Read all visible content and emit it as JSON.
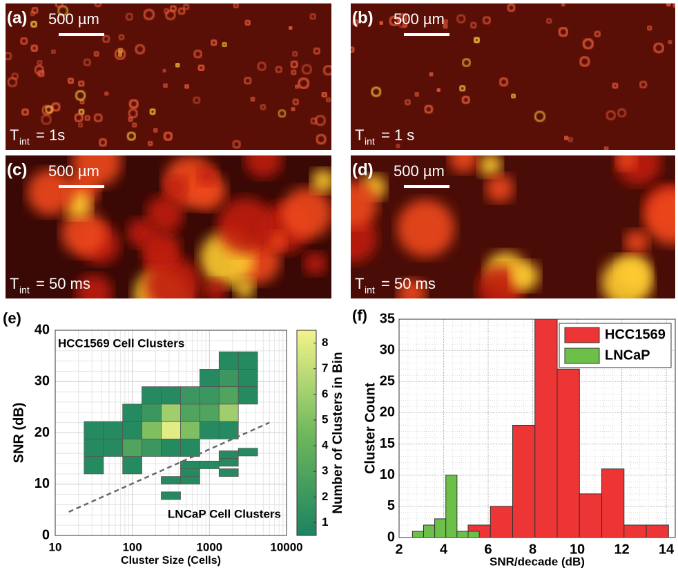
{
  "panels": [
    {
      "label": "(a)",
      "scale_bar": "500 µm",
      "t": "T",
      "sub": "int",
      "t_value": "= 1s"
    },
    {
      "label": "(b)",
      "scale_bar": "500 µm",
      "t": "T",
      "sub": "int",
      "t_value": "= 1 s"
    },
    {
      "label": "(c)",
      "scale_bar": "500 µm",
      "t": "T",
      "sub": "int",
      "t_value": "= 50 ms"
    },
    {
      "label": "(d)",
      "scale_bar": "500 µm",
      "t": "T",
      "sub": "int",
      "t_value": "= 50 ms"
    }
  ],
  "chart_data": [
    {
      "type": "heatmap",
      "panel": "(e)",
      "xlabel": "Cluster Size (Cells)",
      "ylabel": "SNR (dB)",
      "colorbar_label": "Number of Clusters in Bin",
      "xscale": "log",
      "xlim": [
        10,
        10000
      ],
      "xticks": [
        10,
        100,
        1000,
        10000
      ],
      "ylim": [
        0,
        40
      ],
      "yticks": [
        0,
        10,
        20,
        30,
        40
      ],
      "grid": true,
      "clim": [
        0.5,
        8.5
      ],
      "cticks": [
        1,
        2,
        3,
        4,
        5,
        6,
        7,
        8
      ],
      "colormap": [
        "#1b8360",
        "#6fb85c",
        "#f2f38a"
      ],
      "annotations": [
        "HCC1569 Cell Clusters",
        "LNCaP Cell Clusters"
      ],
      "threshold_line": {
        "x": [
          15,
          6000
        ],
        "y": [
          4.6,
          22
        ]
      },
      "cells": [
        {
          "x": [
            1334,
            2371
          ],
          "y": [
            32.4,
            35.8
          ],
          "count": 1
        },
        {
          "x": [
            2371,
            4217
          ],
          "y": [
            32.4,
            35.8
          ],
          "count": 1
        },
        {
          "x": [
            750,
            1334
          ],
          "y": [
            29,
            32.4
          ],
          "count": 1
        },
        {
          "x": [
            1334,
            2371
          ],
          "y": [
            29,
            32.4
          ],
          "count": 2
        },
        {
          "x": [
            2371,
            4217
          ],
          "y": [
            29,
            32.4
          ],
          "count": 1
        },
        {
          "x": [
            133,
            237
          ],
          "y": [
            25.6,
            29
          ],
          "count": 1
        },
        {
          "x": [
            237,
            422
          ],
          "y": [
            25.6,
            29
          ],
          "count": 1
        },
        {
          "x": [
            422,
            750
          ],
          "y": [
            25.6,
            29
          ],
          "count": 2
        },
        {
          "x": [
            750,
            1334
          ],
          "y": [
            25.6,
            29
          ],
          "count": 2
        },
        {
          "x": [
            1334,
            2371
          ],
          "y": [
            25.6,
            29
          ],
          "count": 3
        },
        {
          "x": [
            2371,
            4217
          ],
          "y": [
            25.6,
            29
          ],
          "count": 1
        },
        {
          "x": [
            75,
            133
          ],
          "y": [
            22.2,
            25.6
          ],
          "count": 1
        },
        {
          "x": [
            133,
            237
          ],
          "y": [
            22.2,
            25.6
          ],
          "count": 2
        },
        {
          "x": [
            237,
            422
          ],
          "y": [
            22.2,
            25.6
          ],
          "count": 6
        },
        {
          "x": [
            422,
            750
          ],
          "y": [
            22.2,
            25.6
          ],
          "count": 3
        },
        {
          "x": [
            750,
            1334
          ],
          "y": [
            22.2,
            25.6
          ],
          "count": 3
        },
        {
          "x": [
            1334,
            2371
          ],
          "y": [
            22.2,
            25.6
          ],
          "count": 6
        },
        {
          "x": [
            23.7,
            42.2
          ],
          "y": [
            18.8,
            22.2
          ],
          "count": 1
        },
        {
          "x": [
            42.2,
            75
          ],
          "y": [
            18.8,
            22.2
          ],
          "count": 1
        },
        {
          "x": [
            75,
            133
          ],
          "y": [
            18.8,
            22.2
          ],
          "count": 1
        },
        {
          "x": [
            133,
            237
          ],
          "y": [
            18.8,
            22.2
          ],
          "count": 5
        },
        {
          "x": [
            237,
            422
          ],
          "y": [
            18.8,
            22.2
          ],
          "count": 8
        },
        {
          "x": [
            422,
            750
          ],
          "y": [
            18.8,
            22.2
          ],
          "count": 5
        },
        {
          "x": [
            750,
            1334
          ],
          "y": [
            18.8,
            22.2
          ],
          "count": 1
        },
        {
          "x": [
            1334,
            2371
          ],
          "y": [
            18.8,
            22.2
          ],
          "count": 1
        },
        {
          "x": [
            23.7,
            42.2
          ],
          "y": [
            15.4,
            18.8
          ],
          "count": 1
        },
        {
          "x": [
            42.2,
            75
          ],
          "y": [
            15.4,
            18.8
          ],
          "count": 1
        },
        {
          "x": [
            75,
            133
          ],
          "y": [
            15.4,
            18.8
          ],
          "count": 3
        },
        {
          "x": [
            133,
            237
          ],
          "y": [
            15.4,
            18.8
          ],
          "count": 2
        },
        {
          "x": [
            237,
            422
          ],
          "y": [
            15.4,
            18.8
          ],
          "count": 1
        },
        {
          "x": [
            422,
            750
          ],
          "y": [
            15.4,
            18.8
          ],
          "count": 1
        },
        {
          "x": [
            23.7,
            42.2
          ],
          "y": [
            12,
            15.4
          ],
          "count": 1
        },
        {
          "x": [
            75,
            133
          ],
          "y": [
            12,
            15.4
          ],
          "count": 1
        },
        {
          "x": [
            237,
            422
          ],
          "y": [
            7,
            8.5
          ],
          "count": 1
        },
        {
          "x": [
            237,
            422
          ],
          "y": [
            10,
            11.5
          ],
          "count": 1
        },
        {
          "x": [
            422,
            750
          ],
          "y": [
            10,
            11.5
          ],
          "count": 1
        },
        {
          "x": [
            422,
            750
          ],
          "y": [
            11.5,
            13
          ],
          "count": 1
        },
        {
          "x": [
            422,
            750
          ],
          "y": [
            13,
            14.5
          ],
          "count": 1
        },
        {
          "x": [
            750,
            1334
          ],
          "y": [
            13,
            14.5
          ],
          "count": 1
        },
        {
          "x": [
            1334,
            2371
          ],
          "y": [
            15,
            16.5
          ],
          "count": 1
        },
        {
          "x": [
            1334,
            2371
          ],
          "y": [
            11.5,
            13
          ],
          "count": 1
        },
        {
          "x": [
            2371,
            4217
          ],
          "y": [
            15.5,
            17
          ],
          "count": 1
        },
        {
          "x": [
            1334,
            2371
          ],
          "y": [
            13.5,
            15
          ],
          "count": 1
        }
      ]
    },
    {
      "type": "histogram",
      "panel": "(f)",
      "xlabel": "SNR/decade (dB)",
      "ylabel": "Cluster Count",
      "xlim": [
        2,
        14.4
      ],
      "xticks": [
        2,
        4,
        6,
        8,
        10,
        12,
        14
      ],
      "ylim": [
        0,
        35
      ],
      "yticks": [
        0,
        5,
        10,
        15,
        20,
        25,
        30,
        35
      ],
      "grid": true,
      "legend": "upper-right",
      "series": [
        {
          "name": "HCC1569",
          "color": "#ee3535",
          "bins": [
            5.1,
            6.1,
            7.1,
            8.1,
            9.1,
            10.1,
            11.1,
            12.1,
            13.1,
            14.1
          ],
          "values": [
            2,
            5,
            18,
            35,
            27,
            7,
            11,
            2,
            2
          ]
        },
        {
          "name": "LNCaP",
          "color": "#6cc04a",
          "bins": [
            2.6,
            3.1,
            3.6,
            4.1,
            4.6,
            5.1,
            5.6
          ],
          "values": [
            1,
            2,
            3,
            10,
            1,
            1
          ]
        }
      ]
    }
  ]
}
